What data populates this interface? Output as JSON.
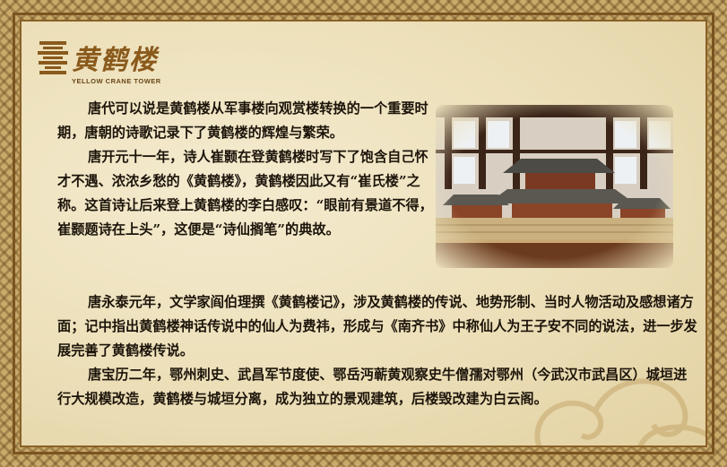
{
  "logo": {
    "name_cn": "黄鹤楼",
    "name_en": "YELLOW CRANE TOWER",
    "brand_color": "#8a5a1c"
  },
  "photo": {
    "subject": "tower-model-icon"
  },
  "paragraphs": [
    "唐代可以说是黄鹤楼从军事楼向观赏楼转换的一个重要时期，唐朝的诗歌记录下了黄鹤楼的辉煌与繁荣。",
    "唐开元十一年，诗人崔颢在登黄鹤楼时写下了饱含自己怀才不遇、浓浓乡愁的《黄鹤楼》，黄鹤楼因此又有“崔氏楼”之称。这首诗让后来登上黄鹤楼的李白感叹：“眼前有景道不得，崔颢题诗在上头”，这便是“诗仙搁笔”的典故。",
    "唐永泰元年，文学家阎伯理撰《黄鹤楼记》，涉及黄鹤楼的传说、地势形制、当时人物活动及感想诸方面；记中指出黄鹤楼神话传说中的仙人为费祎，形成与《南齐书》中称仙人为王子安不同的说法，进一步发展完善了黄鹤楼传说。",
    "唐宝历二年，鄂州刺史、武昌军节度使、鄂岳沔蕲黄观察史牛僧孺对鄂州（今武汉市武昌区）城垣进行大规模改造，黄鹤楼与城垣分离，成为独立的景观建筑，后楼毁改建为白云阁。"
  ]
}
